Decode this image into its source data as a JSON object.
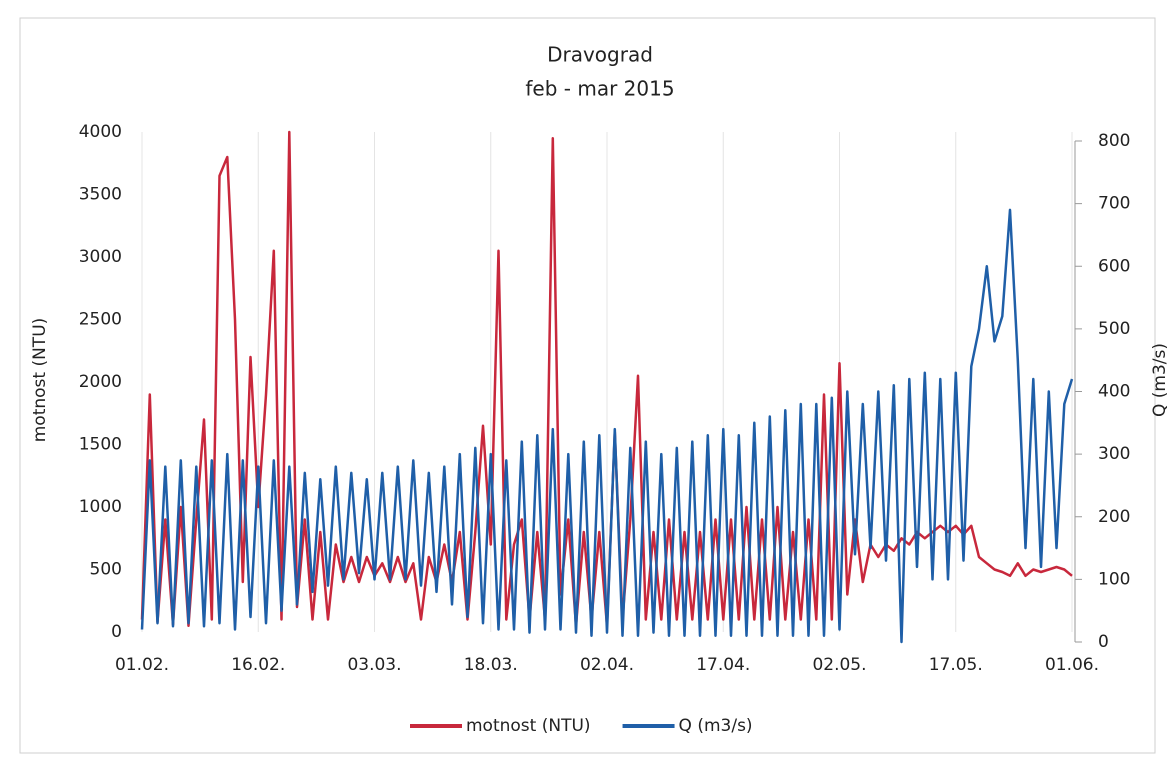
{
  "chart_data": {
    "type": "line",
    "title": "Dravograd",
    "subtitle": "feb - mar 2015",
    "y_label": "motnost (NTU)",
    "y2_label": "Q (m3/s)",
    "grid": "x",
    "legend": "bottom",
    "xlim": [
      0,
      120
    ],
    "xticks": [
      {
        "value": 0,
        "label": "01.02."
      },
      {
        "value": 15,
        "label": "16.02."
      },
      {
        "value": 30,
        "label": "03.03."
      },
      {
        "value": 45,
        "label": "18.03."
      },
      {
        "value": 60,
        "label": "02.04."
      },
      {
        "value": 75,
        "label": "17.04."
      },
      {
        "value": 90,
        "label": "02.05."
      },
      {
        "value": 105,
        "label": "17.05."
      },
      {
        "value": 120,
        "label": "01.06."
      }
    ],
    "ylim": [
      0,
      4000
    ],
    "yticks": [
      0,
      500,
      1000,
      1500,
      2000,
      2500,
      3000,
      3500,
      4000
    ],
    "y2lim": [
      0,
      800
    ],
    "y2ticks": [
      0,
      100,
      200,
      300,
      400,
      500,
      600,
      700,
      800
    ],
    "x": [
      0,
      1,
      2,
      3,
      4,
      5,
      6,
      7,
      8,
      9,
      10,
      11,
      12,
      13,
      14,
      15,
      16,
      17,
      18,
      19,
      20,
      21,
      22,
      23,
      24,
      25,
      26,
      27,
      28,
      29,
      30,
      31,
      32,
      33,
      34,
      35,
      36,
      37,
      38,
      39,
      40,
      41,
      42,
      43,
      44,
      45,
      46,
      47,
      48,
      49,
      50,
      51,
      52,
      53,
      54,
      55,
      56,
      57,
      58,
      59,
      60,
      61,
      62,
      63,
      64,
      65,
      66,
      67,
      68,
      69,
      70,
      71,
      72,
      73,
      74,
      75,
      76,
      77,
      78,
      79,
      80,
      81,
      82,
      83,
      84,
      85,
      86,
      87,
      88,
      89,
      90,
      91,
      92,
      93,
      94,
      95,
      96,
      97,
      98,
      99,
      100,
      101,
      102,
      103,
      104,
      105,
      106,
      107,
      108,
      109,
      110,
      111,
      112,
      113,
      114,
      115,
      116,
      117,
      118,
      119,
      120
    ],
    "series": [
      {
        "name": "motnost (NTU)",
        "color": "#c8283c",
        "axis": "y",
        "values": [
          100,
          1900,
          80,
          900,
          60,
          1000,
          50,
          900,
          1700,
          100,
          3650,
          3800,
          2500,
          400,
          2200,
          1000,
          1900,
          3050,
          100,
          4000,
          200,
          900,
          100,
          800,
          100,
          700,
          400,
          600,
          400,
          600,
          450,
          550,
          400,
          600,
          400,
          550,
          100,
          600,
          400,
          700,
          400,
          800,
          100,
          800,
          1650,
          700,
          3050,
          100,
          700,
          900,
          100,
          800,
          100,
          3950,
          300,
          900,
          50,
          800,
          100,
          800,
          50,
          1600,
          100,
          900,
          2050,
          100,
          800,
          100,
          900,
          100,
          800,
          100,
          800,
          100,
          900,
          100,
          900,
          100,
          1000,
          100,
          900,
          100,
          1000,
          100,
          800,
          100,
          900,
          100,
          1900,
          100,
          2150,
          300,
          900,
          400,
          700,
          600,
          700,
          650,
          750,
          700,
          800,
          750,
          800,
          850,
          800,
          850,
          780,
          850,
          600,
          550,
          500,
          480,
          450,
          550,
          450,
          500,
          480,
          500,
          520,
          500,
          450
        ]
      },
      {
        "name": "Q (m3/s)",
        "color": "#1f5fa8",
        "axis": "y2",
        "values": [
          20,
          290,
          30,
          280,
          25,
          290,
          30,
          280,
          25,
          290,
          30,
          300,
          20,
          290,
          40,
          280,
          30,
          290,
          50,
          280,
          60,
          270,
          80,
          260,
          90,
          280,
          100,
          270,
          110,
          260,
          100,
          270,
          100,
          280,
          100,
          290,
          90,
          270,
          80,
          280,
          60,
          300,
          40,
          310,
          30,
          300,
          20,
          290,
          20,
          320,
          15,
          330,
          20,
          340,
          20,
          300,
          15,
          320,
          10,
          330,
          15,
          340,
          10,
          310,
          10,
          320,
          15,
          300,
          10,
          310,
          10,
          320,
          10,
          330,
          10,
          340,
          10,
          330,
          10,
          350,
          10,
          360,
          10,
          370,
          10,
          380,
          10,
          380,
          10,
          390,
          20,
          400,
          140,
          380,
          150,
          400,
          130,
          410,
          0,
          420,
          120,
          430,
          100,
          420,
          100,
          430,
          130,
          440,
          500,
          600,
          480,
          520,
          690,
          450,
          150,
          420,
          120,
          400,
          150,
          380,
          420
        ]
      }
    ]
  }
}
